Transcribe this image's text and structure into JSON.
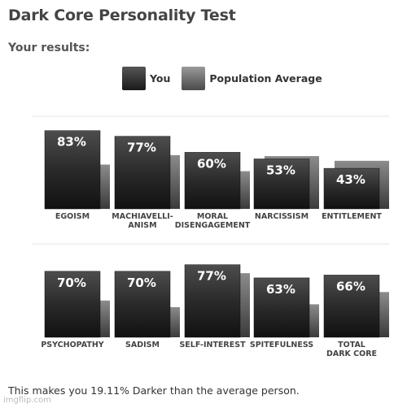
{
  "title": "Dark Core Personality Test",
  "subtitle": "Your results:",
  "legend": {
    "you": "You",
    "population": "Population Average"
  },
  "footer": "This makes you 19.11% Darker than the average person.",
  "watermark": "imgflip.com",
  "colors": {
    "you_bar": "#2b2b2b",
    "population_bar": "#6a6a6a",
    "label": "#444444"
  },
  "chart_data": [
    {
      "type": "bar",
      "ylim": [
        0,
        100
      ],
      "categories": [
        [
          "EGOISM"
        ],
        [
          "MACHIAVELLI-",
          "ANISM"
        ],
        [
          "MORAL",
          "DISENGAGEMENT"
        ],
        [
          "NARCISSISM"
        ],
        [
          "ENTITLEMENT"
        ]
      ],
      "series": [
        {
          "name": "You",
          "values": [
            83,
            77,
            60,
            53,
            43
          ],
          "labels": [
            "83%",
            "77%",
            "60%",
            "53%",
            "43%"
          ]
        },
        {
          "name": "Population Average",
          "values": [
            47,
            57,
            40,
            56,
            51
          ]
        }
      ]
    },
    {
      "type": "bar",
      "ylim": [
        0,
        100
      ],
      "categories": [
        [
          "PSYCHOPATHY"
        ],
        [
          "SADISM"
        ],
        [
          "SELF-INTEREST"
        ],
        [
          "SPITEFULNESS"
        ],
        [
          "TOTAL",
          "DARK CORE"
        ]
      ],
      "series": [
        {
          "name": "You",
          "values": [
            70,
            70,
            77,
            63,
            66
          ],
          "labels": [
            "70%",
            "70%",
            "77%",
            "63%",
            "66%"
          ]
        },
        {
          "name": "Population Average",
          "values": [
            39,
            32,
            68,
            35,
            48
          ]
        }
      ]
    }
  ]
}
